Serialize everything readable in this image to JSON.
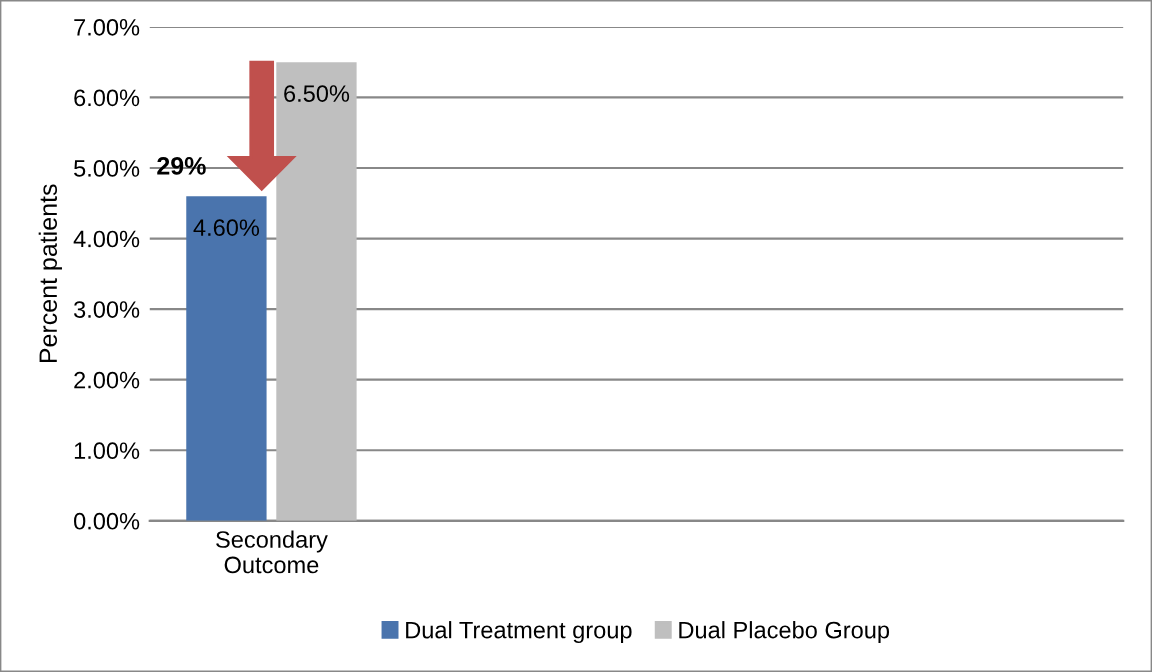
{
  "chart_data": {
    "type": "bar",
    "ylabel": "Percent patients",
    "categories": [
      "Secondary Outcome",
      null,
      null,
      null
    ],
    "series": [
      {
        "name": "Dual Treatment group",
        "color": "#4a74ad",
        "values": [
          4.6,
          null,
          null,
          null
        ],
        "value_labels": [
          "4.60%",
          null,
          null,
          null
        ]
      },
      {
        "name": "Dual Placebo Group",
        "color": "#bfbfbf",
        "values": [
          6.5,
          null,
          null,
          null
        ],
        "value_labels": [
          "6.50%",
          null,
          null,
          null
        ]
      }
    ],
    "ylim": [
      0,
      7
    ],
    "yticks": [
      {
        "value": 0,
        "label": "0.00%"
      },
      {
        "value": 1,
        "label": "1.00%"
      },
      {
        "value": 2,
        "label": "2.00%"
      },
      {
        "value": 3,
        "label": "3.00%"
      },
      {
        "value": 4,
        "label": "4.00%"
      },
      {
        "value": 5,
        "label": "5.00%"
      },
      {
        "value": 6,
        "label": "6.00%"
      },
      {
        "value": 7,
        "label": "7.00%"
      }
    ],
    "annotations": [
      "29%"
    ],
    "grid": "y",
    "legend": "bottom"
  }
}
